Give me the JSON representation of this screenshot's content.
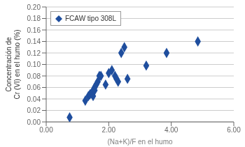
{
  "chart_data": {
    "type": "scatter",
    "xlabel": "(Na+K)/F en el humo",
    "ylabel": "Concentración de\nCr (VI) en el humo (%)",
    "x": [
      0.75,
      1.25,
      1.35,
      1.4,
      1.45,
      1.5,
      1.5,
      1.55,
      1.55,
      1.6,
      1.65,
      1.7,
      1.75,
      1.9,
      2.0,
      2.1,
      2.2,
      2.25,
      2.3,
      2.4,
      2.5,
      2.6,
      3.2,
      3.85,
      4.85
    ],
    "series": [
      {
        "name": "FCAW tipo 308L",
        "color": "#1f4e9e",
        "marker": "diamond",
        "values": [
          0.008,
          0.037,
          0.045,
          0.048,
          0.05,
          0.045,
          0.055,
          0.06,
          0.055,
          0.065,
          0.07,
          0.08,
          0.08,
          0.065,
          0.085,
          0.09,
          0.08,
          0.075,
          0.07,
          0.12,
          0.13,
          0.075,
          0.098,
          0.12,
          0.14
        ]
      }
    ],
    "xlim": [
      0.0,
      6.0
    ],
    "ylim": [
      0.0,
      0.2
    ],
    "xticks": [
      {
        "value": 0.0,
        "label": "0.00"
      },
      {
        "value": 2.0,
        "label": "2.00"
      },
      {
        "value": 4.0,
        "label": "4.00"
      },
      {
        "value": 6.0,
        "label": "6.00"
      }
    ],
    "yticks": [
      {
        "value": 0.0,
        "label": "0.00"
      },
      0.02,
      0.04,
      0.06,
      0.08,
      {
        "value": 0.1,
        "label": "0.10"
      },
      0.12,
      0.14,
      0.16,
      0.18,
      {
        "value": 0.2,
        "label": "0.20"
      }
    ],
    "grid": "y",
    "legend": "upper left"
  }
}
